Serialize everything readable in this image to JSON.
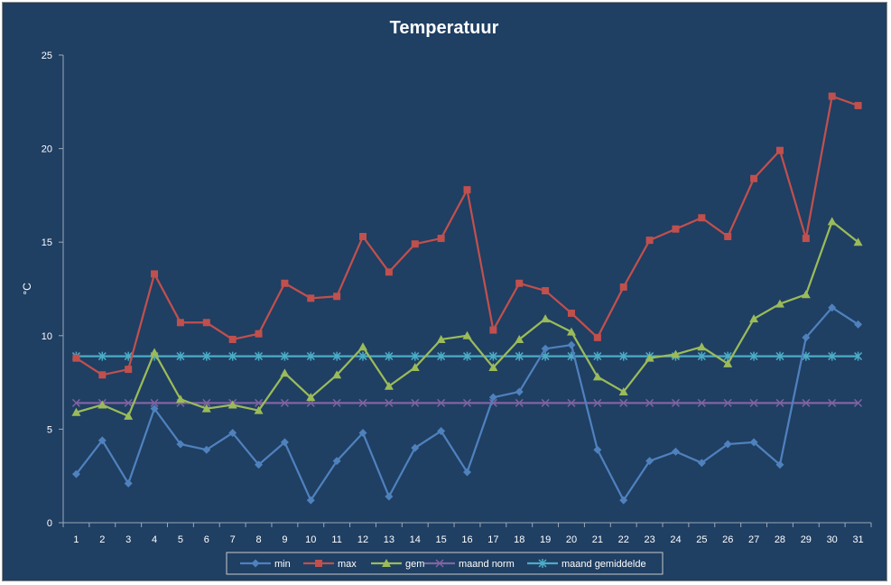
{
  "chart_data": {
    "type": "line",
    "title": "Temperatuur",
    "xlabel": "",
    "ylabel": "°C",
    "ylim": [
      0,
      25
    ],
    "yticks": [
      0,
      5,
      10,
      15,
      20,
      25
    ],
    "grid": false,
    "legend_position": "bottom",
    "x": [
      "1",
      "2",
      "3",
      "4",
      "5",
      "6",
      "7",
      "8",
      "9",
      "10",
      "11",
      "12",
      "13",
      "14",
      "15",
      "16",
      "17",
      "18",
      "19",
      "20",
      "21",
      "22",
      "23",
      "24",
      "25",
      "26",
      "27",
      "28",
      "29",
      "30",
      "31"
    ],
    "series": [
      {
        "name": "min",
        "color": "#4f81bd",
        "marker": "diamond",
        "values": [
          2.6,
          4.4,
          2.1,
          6.1,
          4.2,
          3.9,
          4.8,
          3.1,
          4.3,
          1.2,
          3.3,
          4.8,
          1.4,
          4.0,
          4.9,
          2.7,
          6.7,
          7.0,
          9.3,
          9.5,
          3.9,
          1.2,
          3.3,
          3.8,
          3.2,
          4.2,
          4.3,
          3.1,
          9.9,
          11.5,
          10.6
        ]
      },
      {
        "name": "max",
        "color": "#c0504d",
        "marker": "square",
        "values": [
          8.8,
          7.9,
          8.2,
          13.3,
          10.7,
          10.7,
          9.8,
          10.1,
          12.8,
          12.0,
          12.1,
          15.3,
          13.4,
          14.9,
          15.2,
          17.8,
          10.3,
          12.8,
          12.4,
          11.2,
          9.9,
          12.6,
          15.1,
          15.7,
          16.3,
          15.3,
          18.4,
          19.9,
          15.2,
          22.8,
          22.3
        ]
      },
      {
        "name": "gem",
        "color": "#9bbb59",
        "marker": "triangle",
        "values": [
          5.9,
          6.3,
          5.7,
          9.1,
          6.6,
          6.1,
          6.3,
          6.0,
          8.0,
          6.7,
          7.9,
          9.4,
          7.3,
          8.3,
          9.8,
          10.0,
          8.3,
          9.8,
          10.9,
          10.2,
          7.8,
          7.0,
          8.8,
          9.0,
          9.4,
          8.5,
          10.9,
          11.7,
          12.2,
          16.1,
          15.0
        ]
      },
      {
        "name": "maand norm",
        "color": "#8064a2",
        "marker": "x",
        "values": [
          6.4,
          6.4,
          6.4,
          6.4,
          6.4,
          6.4,
          6.4,
          6.4,
          6.4,
          6.4,
          6.4,
          6.4,
          6.4,
          6.4,
          6.4,
          6.4,
          6.4,
          6.4,
          6.4,
          6.4,
          6.4,
          6.4,
          6.4,
          6.4,
          6.4,
          6.4,
          6.4,
          6.4,
          6.4,
          6.4,
          6.4
        ]
      },
      {
        "name": "maand gemiddelde",
        "color": "#4bacc6",
        "marker": "star",
        "values": [
          8.9,
          8.9,
          8.9,
          8.9,
          8.9,
          8.9,
          8.9,
          8.9,
          8.9,
          8.9,
          8.9,
          8.9,
          8.9,
          8.9,
          8.9,
          8.9,
          8.9,
          8.9,
          8.9,
          8.9,
          8.9,
          8.9,
          8.9,
          8.9,
          8.9,
          8.9,
          8.9,
          8.9,
          8.9,
          8.9,
          8.9
        ]
      }
    ]
  }
}
